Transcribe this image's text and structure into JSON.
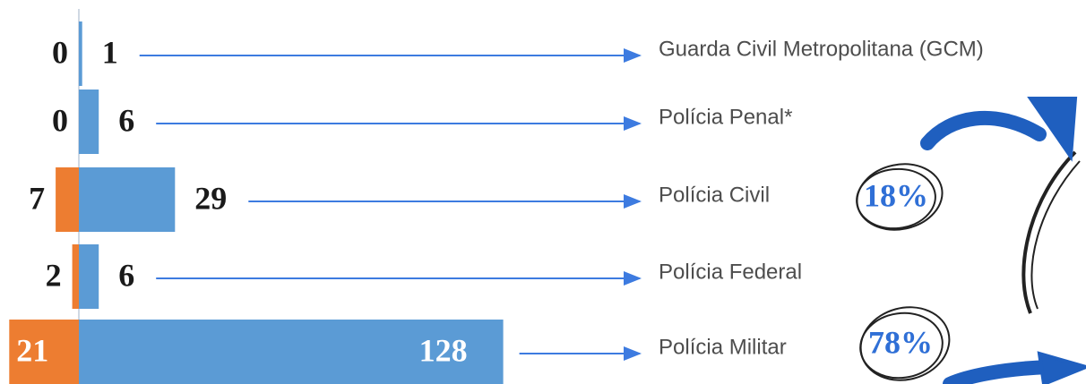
{
  "chart_data": {
    "type": "diverging-bar",
    "categories": [
      "Guarda Civil Metropolitana (GCM)",
      "Polícia Penal*",
      "Polícia Civil",
      "Polícia Federal",
      "Polícia Militar"
    ],
    "series": [
      {
        "color": "#ed7d31",
        "values": [
          0,
          0,
          7,
          2,
          21
        ]
      },
      {
        "color": "#5b9bd5",
        "values": [
          1,
          6,
          29,
          6,
          128
        ]
      }
    ],
    "annotations": [
      "18%",
      "78%"
    ]
  }
}
